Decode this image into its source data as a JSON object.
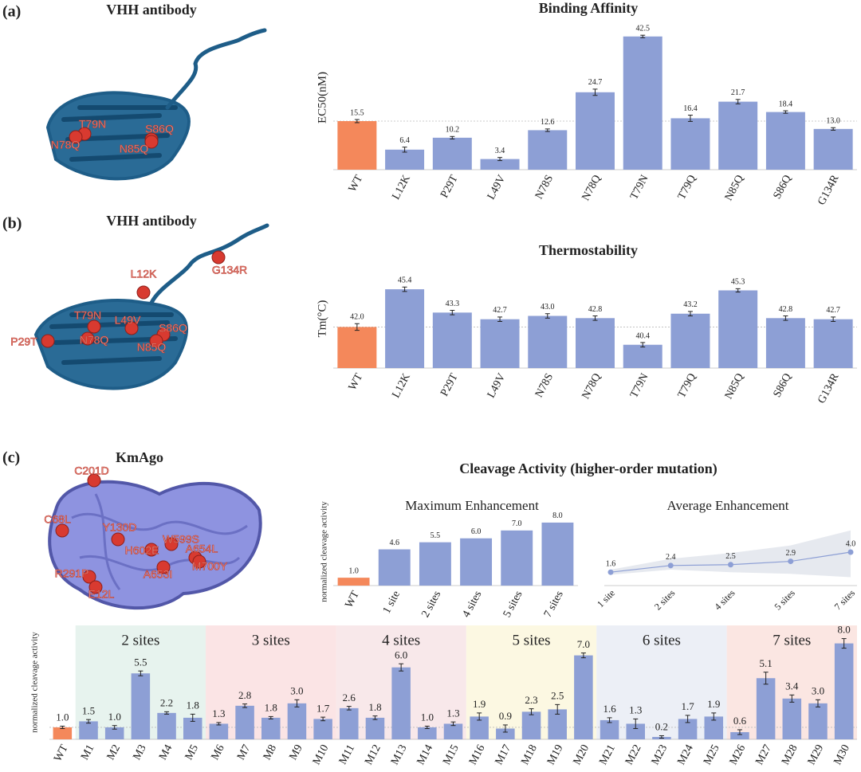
{
  "panels": [
    {
      "label": "(a)",
      "structure_title": "VHH antibody",
      "mutations": [
        "T79N",
        "S86Q",
        "N78Q",
        "N85Q"
      ]
    },
    {
      "label": "(b)",
      "structure_title": "VHH antibody",
      "mutations": [
        "G134R",
        "L12K",
        "T79N",
        "L49V",
        "S86Q",
        "P29T",
        "N78Q",
        "N85Q"
      ]
    },
    {
      "label": "(c)",
      "structure_title": "KmAgo",
      "mutations": [
        "C201D",
        "C68L",
        "Y130D",
        "W599S",
        "H602E",
        "A654L",
        "M700Y",
        "R291P",
        "A653I",
        "E12L"
      ]
    }
  ],
  "cleavage_title": "Cleavage Activity (higher-order mutation)",
  "chart_data": [
    {
      "type": "bar",
      "title": "Binding Affinity",
      "ylabel": "EC50(nM)",
      "categories": [
        "WT",
        "L12K",
        "P29T",
        "L49V",
        "N78S",
        "N78Q",
        "T79N",
        "T79Q",
        "N85Q",
        "S86Q",
        "G134R"
      ],
      "values": [
        15.5,
        6.4,
        10.2,
        3.4,
        12.6,
        24.7,
        42.5,
        16.4,
        21.7,
        18.4,
        13.0
      ],
      "value_labels": [
        "15.5",
        "6.4",
        "10.2",
        "3.4",
        "12.6",
        "24.7",
        "42.5",
        "16.4",
        "21.7",
        "18.4",
        "13.0"
      ],
      "errors": [
        0.5,
        0.8,
        0.4,
        0.5,
        0.4,
        1.0,
        0.4,
        1.0,
        0.7,
        0.4,
        0.4
      ],
      "colors": [
        "#f4885b",
        "#8d9fd5",
        "#8d9fd5",
        "#8d9fd5",
        "#8d9fd5",
        "#8d9fd5",
        "#8d9fd5",
        "#8d9fd5",
        "#8d9fd5",
        "#8d9fd5",
        "#8d9fd5"
      ],
      "ylim": [
        0,
        46
      ],
      "reference_line": true,
      "grid": false
    },
    {
      "type": "bar",
      "title": "Thermostability",
      "ylabel": "Tm(°C)",
      "categories": [
        "WT",
        "L12K",
        "P29T",
        "L49V",
        "N78S",
        "N78Q",
        "T79N",
        "T79Q",
        "N85Q",
        "S86Q",
        "G134R"
      ],
      "values": [
        42.0,
        45.4,
        43.3,
        42.7,
        43.0,
        42.8,
        40.4,
        43.2,
        45.3,
        42.8,
        42.7
      ],
      "value_labels": [
        "42.0",
        "45.4",
        "43.3",
        "42.7",
        "43.0",
        "42.8",
        "40.4",
        "43.2",
        "45.3",
        "42.8",
        "42.7"
      ],
      "errors": [
        0.3,
        0.2,
        0.2,
        0.2,
        0.2,
        0.2,
        0.2,
        0.2,
        0.15,
        0.2,
        0.2
      ],
      "colors": [
        "#f4885b",
        "#8d9fd5",
        "#8d9fd5",
        "#8d9fd5",
        "#8d9fd5",
        "#8d9fd5",
        "#8d9fd5",
        "#8d9fd5",
        "#8d9fd5",
        "#8d9fd5",
        "#8d9fd5"
      ],
      "ylim": [
        38.3,
        47.2
      ],
      "reference_line": true,
      "grid": false
    },
    {
      "type": "bar",
      "title": "Maximum Enhancement",
      "ylabel": "normalized cleavage activity",
      "categories": [
        "WT",
        "1 site",
        "2 sites",
        "4 sites",
        "5 sites",
        "7 sites"
      ],
      "values": [
        1.0,
        4.6,
        5.5,
        6.0,
        7.0,
        8.0
      ],
      "value_labels": [
        "1.0",
        "4.6",
        "5.5",
        "6.0",
        "7.0",
        "8.0"
      ],
      "colors": [
        "#f4885b",
        "#8d9fd5",
        "#8d9fd5",
        "#8d9fd5",
        "#8d9fd5",
        "#8d9fd5"
      ],
      "ylim": [
        0,
        8.6
      ],
      "reference_line": false,
      "grid": false
    },
    {
      "type": "line",
      "title": "Average Enhancement",
      "categories": [
        "1 site",
        "2 sites",
        "4 sites",
        "5 sites",
        "7 sites"
      ],
      "values": [
        1.6,
        2.4,
        2.5,
        2.9,
        4.0
      ],
      "value_labels": [
        "1.6",
        "2.4",
        "2.5",
        "2.9",
        "4.0"
      ],
      "lower": [
        1.3,
        1.9,
        1.6,
        1.4,
        1.0
      ],
      "upper": [
        1.9,
        3.2,
        3.9,
        4.8,
        6.6
      ],
      "color": "#8d9fd5",
      "band_color": "#e6e9ef",
      "ylim": [
        0,
        8.1
      ],
      "grid": false
    },
    {
      "type": "bar",
      "ylabel": "normalized cleavage activity",
      "categories": [
        "WT",
        "M1",
        "M2",
        "M3",
        "M4",
        "M5",
        "M6",
        "M7",
        "M8",
        "M9",
        "M10",
        "M11",
        "M12",
        "M13",
        "M14",
        "M15",
        "M16",
        "M17",
        "M18",
        "M19",
        "M20",
        "M21",
        "M22",
        "M23",
        "M24",
        "M25",
        "M26",
        "M27",
        "M28",
        "M29",
        "M30"
      ],
      "values": [
        1.0,
        1.5,
        1.0,
        5.5,
        2.2,
        1.8,
        1.3,
        2.8,
        1.8,
        3.0,
        1.7,
        2.6,
        1.8,
        6.0,
        1.0,
        1.3,
        1.9,
        0.9,
        2.3,
        2.5,
        7.0,
        1.6,
        1.3,
        0.2,
        1.7,
        1.9,
        0.6,
        5.1,
        3.4,
        3.0,
        8.0
      ],
      "value_labels": [
        "1.0",
        "1.5",
        "1.0",
        "5.5",
        "2.2",
        "1.8",
        "1.3",
        "2.8",
        "1.8",
        "3.0",
        "1.7",
        "2.6",
        "1.8",
        "6.0",
        "1.0",
        "1.3",
        "1.9",
        "0.9",
        "2.3",
        "2.5",
        "7.0",
        "1.6",
        "1.3",
        "0.2",
        "1.7",
        "1.9",
        "0.6",
        "5.1",
        "3.4",
        "3.0",
        "8.0"
      ],
      "errors": [
        0.1,
        0.15,
        0.15,
        0.2,
        0.1,
        0.3,
        0.1,
        0.15,
        0.1,
        0.3,
        0.15,
        0.15,
        0.15,
        0.3,
        0.1,
        0.15,
        0.3,
        0.3,
        0.25,
        0.4,
        0.2,
        0.2,
        0.4,
        0.1,
        0.3,
        0.3,
        0.2,
        0.5,
        0.3,
        0.3,
        0.4
      ],
      "colors": [
        "#f4885b",
        "#8d9fd5",
        "#8d9fd5",
        "#8d9fd5",
        "#8d9fd5",
        "#8d9fd5",
        "#8d9fd5",
        "#8d9fd5",
        "#8d9fd5",
        "#8d9fd5",
        "#8d9fd5",
        "#8d9fd5",
        "#8d9fd5",
        "#8d9fd5",
        "#8d9fd5",
        "#8d9fd5",
        "#8d9fd5",
        "#8d9fd5",
        "#8d9fd5",
        "#8d9fd5",
        "#8d9fd5",
        "#8d9fd5",
        "#8d9fd5",
        "#8d9fd5",
        "#8d9fd5",
        "#8d9fd5",
        "#8d9fd5",
        "#8d9fd5",
        "#8d9fd5",
        "#8d9fd5",
        "#8d9fd5"
      ],
      "groups": [
        {
          "label": "2 sites",
          "size": 5,
          "color": "#e7f3ee"
        },
        {
          "label": "3 sites",
          "size": 5,
          "color": "#fbe4e5"
        },
        {
          "label": "4 sites",
          "size": 5,
          "color": "#f8e8ea"
        },
        {
          "label": "5 sites",
          "size": 5,
          "color": "#fcf8e2"
        },
        {
          "label": "6 sites",
          "size": 5,
          "color": "#eceff6"
        },
        {
          "label": "7 sites",
          "size": 5,
          "color": "#fbe6e2"
        }
      ],
      "ylim": [
        0,
        9.5
      ],
      "reference_line": true,
      "grid": false
    }
  ]
}
